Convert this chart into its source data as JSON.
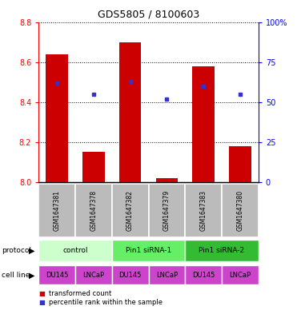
{
  "title": "GDS5805 / 8100603",
  "samples": [
    "GSM1647381",
    "GSM1647378",
    "GSM1647382",
    "GSM1647379",
    "GSM1647383",
    "GSM1647380"
  ],
  "bar_values": [
    8.64,
    8.15,
    8.7,
    8.02,
    8.58,
    8.18
  ],
  "bar_bottom": 8.0,
  "percentile_values": [
    62,
    55,
    63,
    52,
    60,
    55
  ],
  "ylim_left": [
    8.0,
    8.8
  ],
  "ylim_right": [
    0,
    100
  ],
  "yticks_left": [
    8.0,
    8.2,
    8.4,
    8.6,
    8.8
  ],
  "yticks_right": [
    0,
    25,
    50,
    75,
    100
  ],
  "ytick_labels_right": [
    "0",
    "25",
    "50",
    "75",
    "100%"
  ],
  "bar_color": "#cc0000",
  "dot_color": "#3333cc",
  "protocol_groups": [
    {
      "label": "control",
      "start": 0,
      "end": 1,
      "color": "#ccffcc"
    },
    {
      "label": "Pin1 siRNA-1",
      "start": 2,
      "end": 3,
      "color": "#66ee66"
    },
    {
      "label": "Pin1 siRNA-2",
      "start": 4,
      "end": 5,
      "color": "#33bb33"
    }
  ],
  "cell_lines": [
    "DU145",
    "LNCaP",
    "DU145",
    "LNCaP",
    "DU145",
    "LNCaP"
  ],
  "cell_line_color": "#cc44cc",
  "legend_red_label": "transformed count",
  "legend_blue_label": "percentile rank within the sample",
  "sample_box_color": "#bbbbbb",
  "title_fontsize": 9,
  "tick_fontsize": 7,
  "label_fontsize": 6.5,
  "row_fontsize": 6.5
}
